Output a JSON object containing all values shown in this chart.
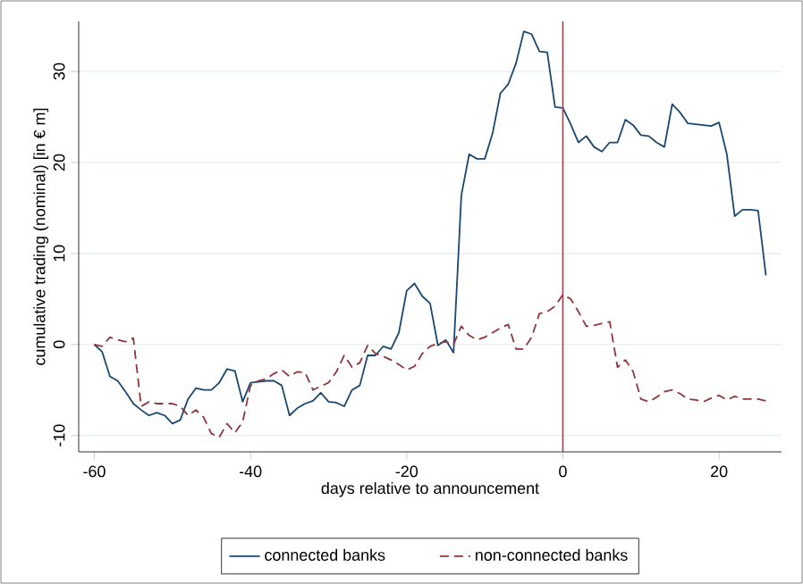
{
  "chart_data": {
    "type": "line",
    "xlabel": "days relative to announcement",
    "ylabel": "cumulative trading (nominal) [in € m]",
    "x": [
      -60,
      -59,
      -58,
      -57,
      -56,
      -55,
      -54,
      -53,
      -52,
      -51,
      -50,
      -49,
      -48,
      -47,
      -46,
      -45,
      -44,
      -43,
      -42,
      -41,
      -40,
      -39,
      -38,
      -37,
      -36,
      -35,
      -34,
      -33,
      -32,
      -31,
      -30,
      -29,
      -28,
      -27,
      -26,
      -25,
      -24,
      -23,
      -22,
      -21,
      -20,
      -19,
      -18,
      -17,
      -16,
      -15,
      -14,
      -13,
      -12,
      -11,
      -10,
      -9,
      -8,
      -7,
      -6,
      -5,
      -4,
      -3,
      -2,
      -1,
      0,
      1,
      2,
      3,
      4,
      5,
      6,
      7,
      8,
      9,
      10,
      11,
      12,
      13,
      14,
      15,
      16,
      17,
      18,
      19,
      20,
      21,
      22,
      23,
      24,
      25,
      26
    ],
    "series": [
      {
        "name": "connected banks",
        "color": "#1a476f",
        "line_style": "solid",
        "values": [
          0,
          -0.8,
          -3.5,
          -4,
          -5.2,
          -6.5,
          -7.2,
          -7.8,
          -7.5,
          -7.8,
          -8.7,
          -8.3,
          -6,
          -4.8,
          -5,
          -5,
          -4.2,
          -2.7,
          -2.9,
          -6.3,
          -4.2,
          -4.1,
          -4,
          -4,
          -4.5,
          -7.8,
          -7,
          -6.5,
          -6.2,
          -5.3,
          -6.3,
          -6.4,
          -6.8,
          -5,
          -4.5,
          -1.2,
          -1.2,
          -0.2,
          -0.5,
          1.3,
          5.9,
          6.7,
          5.3,
          4.5,
          -0.1,
          0.5,
          -0.9,
          16.4,
          20.9,
          20.4,
          20.4,
          23.2,
          27.6,
          28.6,
          30.9,
          34.4,
          34.1,
          32.2,
          32.1,
          26.1,
          26,
          24.2,
          22.2,
          22.9,
          21.7,
          21.2,
          22.2,
          22.2,
          24.7,
          24.1,
          23,
          22.9,
          22.2,
          21.7,
          26.4,
          25.5,
          24.3,
          24.2,
          24.1,
          24,
          24.4,
          20.9,
          14.1,
          14.8,
          14.8,
          14.7,
          7.6
        ]
      },
      {
        "name": "non-connected banks",
        "color": "#90353b",
        "line_style": "dashed",
        "values": [
          0,
          -0.2,
          0.8,
          0.5,
          0.3,
          0.7,
          -6.8,
          -6.3,
          -6.5,
          -6.5,
          -6.5,
          -6.8,
          -7.8,
          -7.2,
          -8,
          -9.8,
          -10.2,
          -8.7,
          -9.7,
          -8.5,
          -4.5,
          -4,
          -3.8,
          -3.2,
          -2.8,
          -3.5,
          -3,
          -3.1,
          -5,
          -4.6,
          -4.2,
          -3,
          -1.2,
          -2.5,
          -2,
          -0.1,
          -1,
          -1.3,
          -1.7,
          -2.2,
          -2.8,
          -2.4,
          -1,
          -0.2,
          0.1,
          0.3,
          0,
          2,
          1,
          0.5,
          0.8,
          1.3,
          1.8,
          2.2,
          -0.5,
          -0.5,
          0.8,
          3.4,
          3.6,
          4.2,
          5.5,
          5,
          3.6,
          2,
          2.1,
          2.3,
          2.5,
          -2.5,
          -1.7,
          -3,
          -6,
          -6.3,
          -5.8,
          -5.2,
          -5,
          -5.4,
          -6,
          -6.1,
          -6.3,
          -5.9,
          -5.6,
          -6.1,
          -5.7,
          -6,
          -6,
          -6,
          -6.2
        ]
      }
    ],
    "xlim": [
      -62,
      28
    ],
    "xticks": [
      -60,
      -40,
      -20,
      0,
      20
    ],
    "ylim": [
      -11.8,
      35.5
    ],
    "yticks": [
      -10,
      0,
      10,
      20,
      30
    ],
    "grid": "y",
    "legend": "bottom",
    "marker": "none",
    "ref_lines": [
      {
        "axis": "x",
        "value": 0,
        "color": "#c0304a"
      }
    ]
  }
}
